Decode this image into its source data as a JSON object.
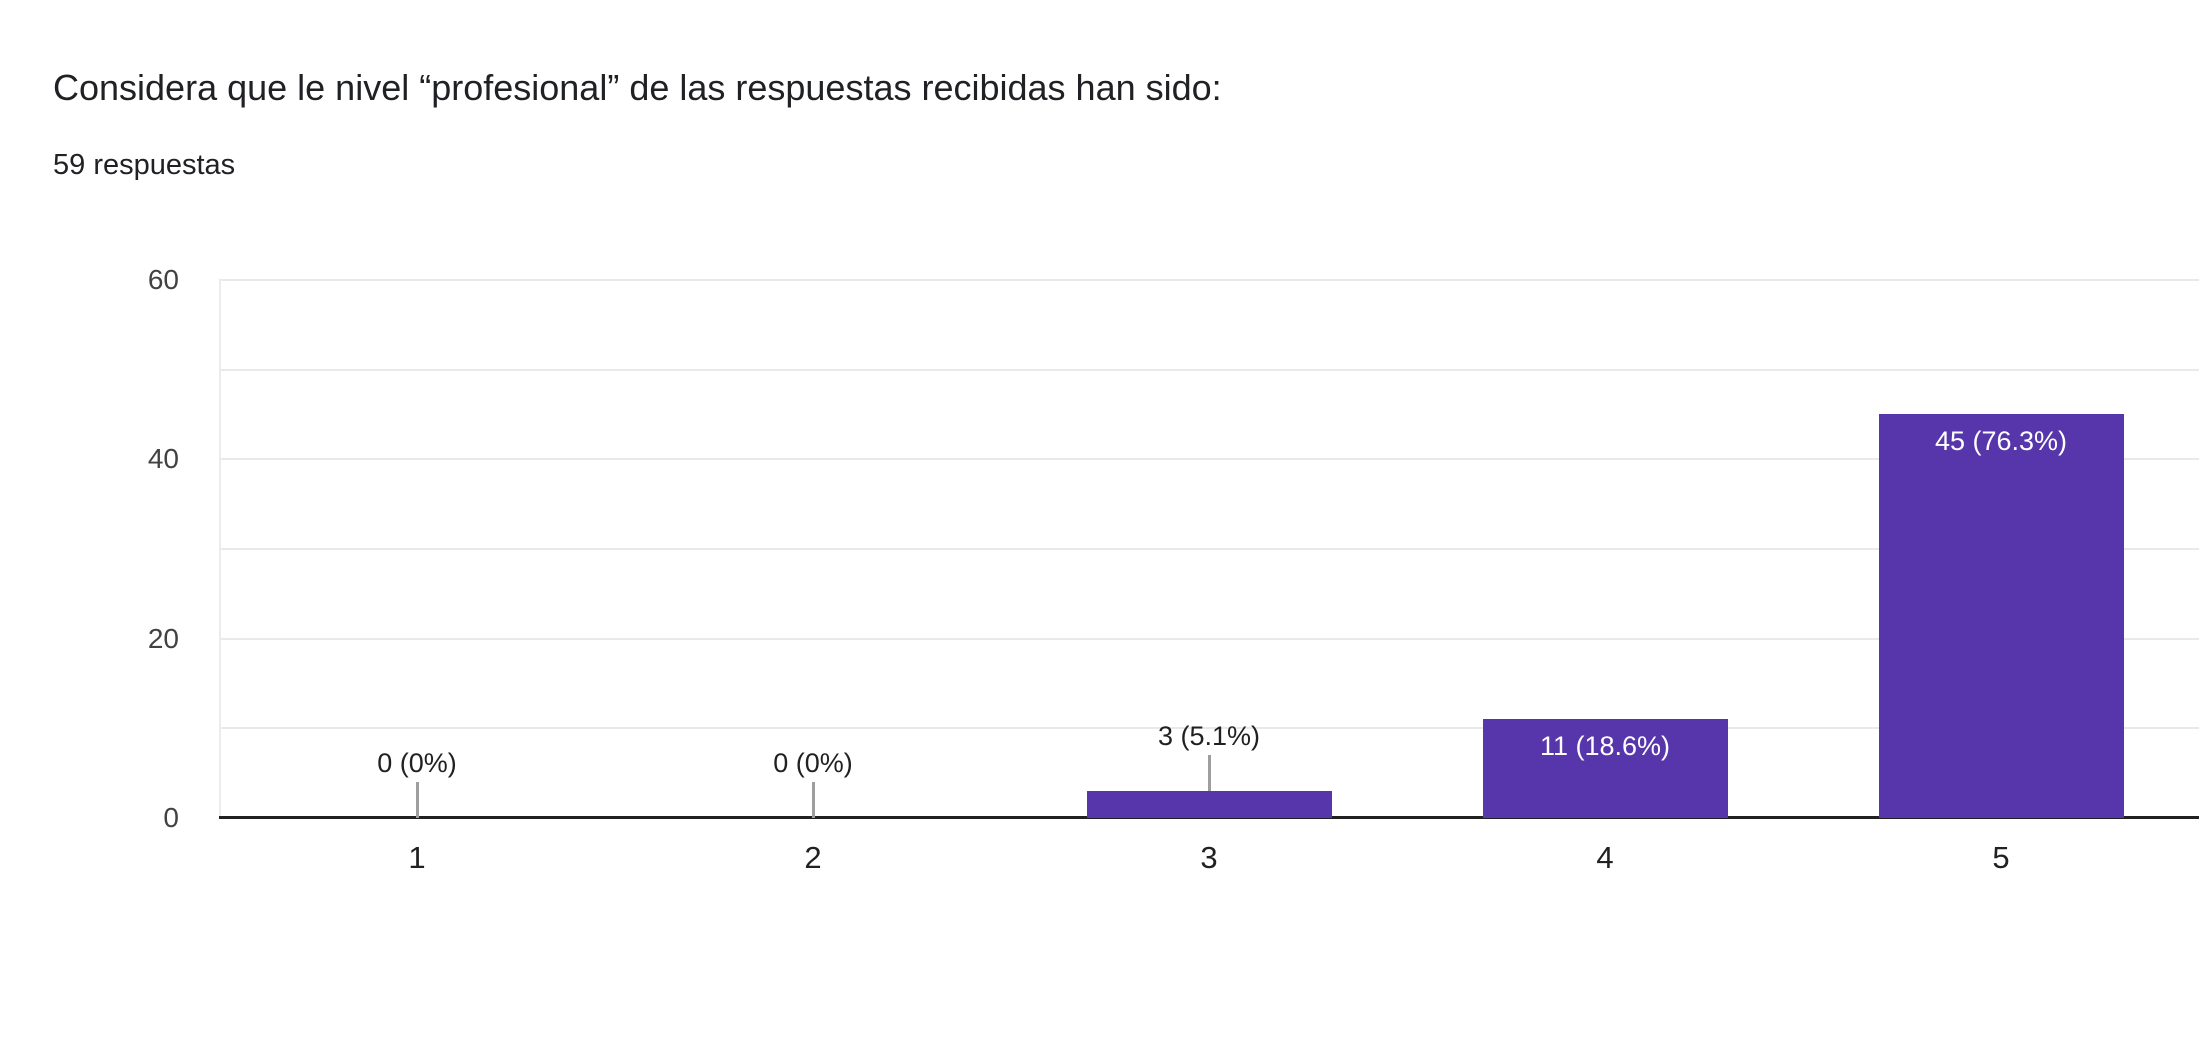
{
  "header": {
    "title": "Considera que le nivel “profesional” de las respuestas recibidas han sido:",
    "responses_count": "59 respuestas"
  },
  "chart_data": {
    "type": "bar",
    "title": "Considera que le nivel “profesional” de las respuestas recibidas han sido:",
    "subtitle": "59 respuestas",
    "total_responses": 59,
    "categories": [
      "1",
      "2",
      "3",
      "4",
      "5"
    ],
    "values": [
      0,
      0,
      3,
      11,
      45
    ],
    "bar_labels": [
      "0 (0%)",
      "0 (0%)",
      "3 (5.1%)",
      "11 (18.6%)",
      "45 (76.3%)"
    ],
    "xlabel": "",
    "ylabel": "",
    "ylim": [
      0,
      60
    ],
    "yticks": [
      0,
      20,
      40,
      60
    ],
    "gridline_step": 10,
    "grid": true,
    "legend": "none",
    "colors": {
      "bar": "#5636aa",
      "axis_line": "#212121",
      "gridline": "#e9e9e9",
      "plot_edge": "#ececec",
      "tick_label": "#424242",
      "category_label": "#212121",
      "value_label_outside": "#212121",
      "value_label_inside": "#ffffff",
      "connector": "#9e9e9e",
      "title_text": "#202124",
      "background": "#ffffff"
    }
  }
}
